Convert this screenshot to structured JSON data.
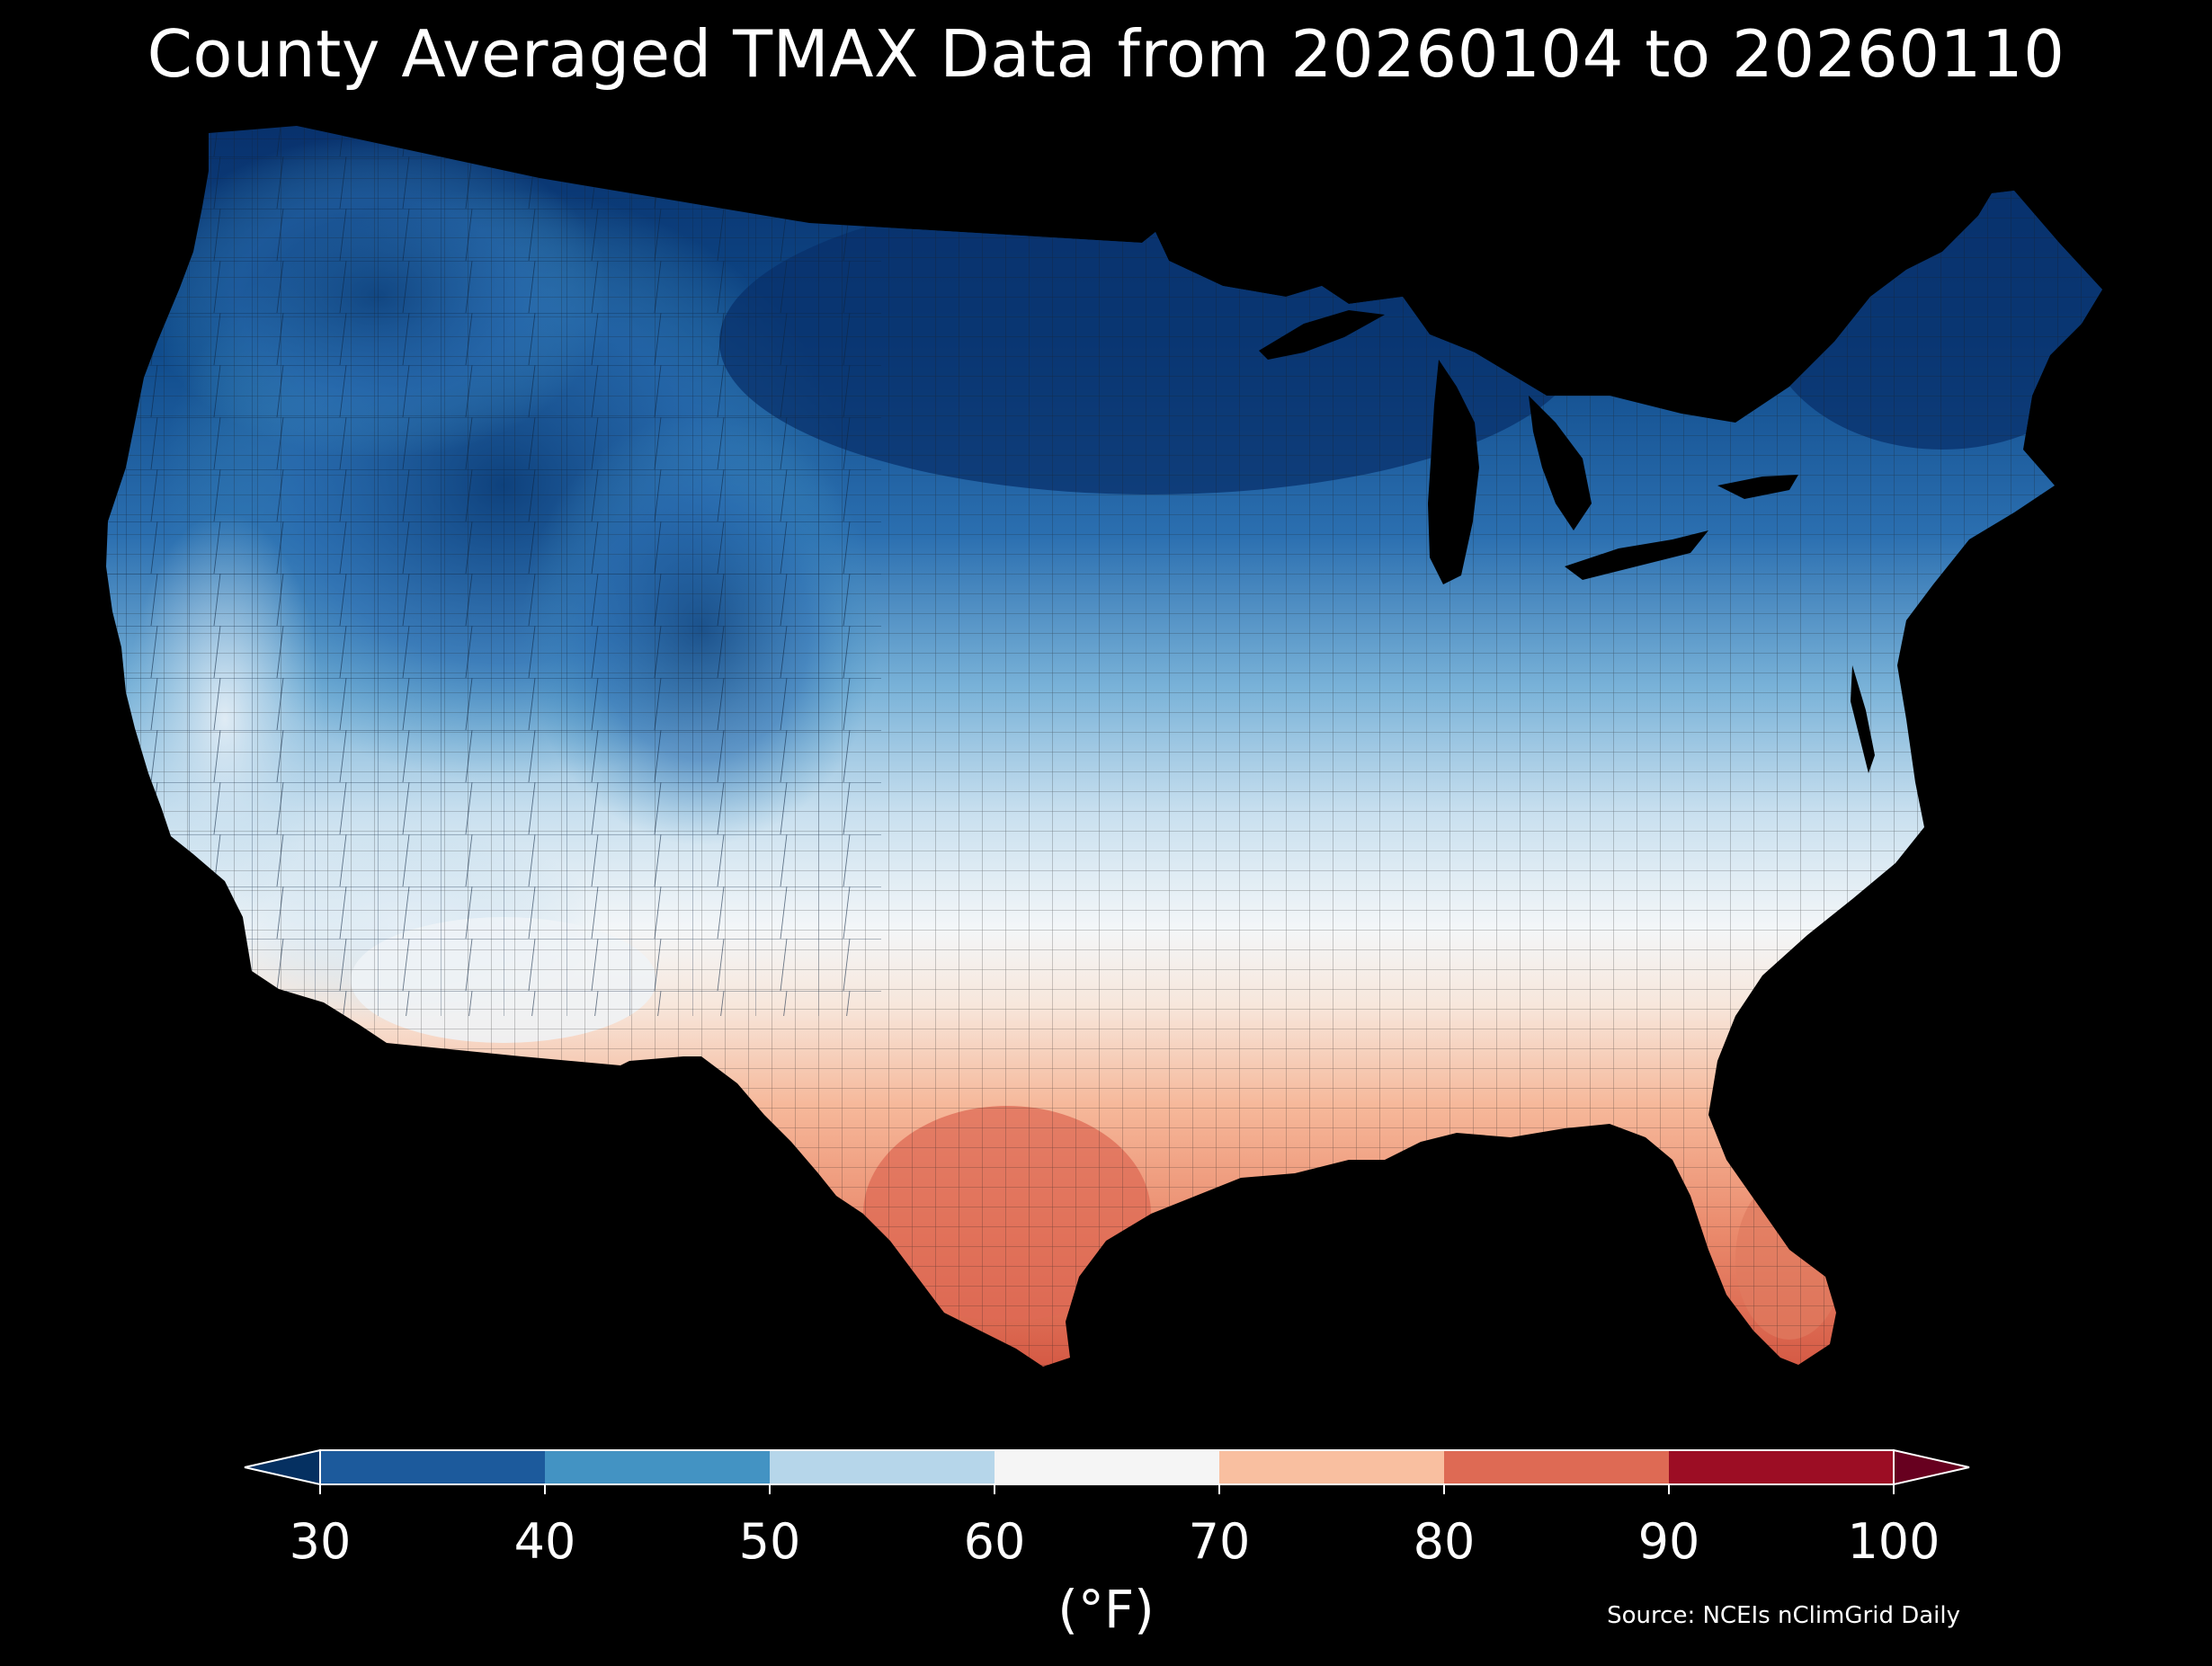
{
  "title": "County Averaged TMAX Data from 20260104 to 20260110",
  "colorbar": {
    "unit_label": "(°F)",
    "ticks": [
      "30",
      "40",
      "50",
      "60",
      "70",
      "80",
      "90",
      "100"
    ],
    "bins": [
      {
        "range": "<30",
        "color": "#053061"
      },
      {
        "range": "30-40",
        "color": "#1c5a9c"
      },
      {
        "range": "40-50",
        "color": "#4393c3"
      },
      {
        "range": "50-60",
        "color": "#b6d6ea"
      },
      {
        "range": "60-70",
        "color": "#f5f5f5"
      },
      {
        "range": "70-80",
        "color": "#f9bfa0"
      },
      {
        "range": "80-90",
        "color": "#de6a54"
      },
      {
        "range": "90-100",
        "color": "#9c0d24"
      },
      {
        "range": ">100",
        "color": "#67001f"
      }
    ]
  },
  "source": "Source: NCEIs nClimGrid Daily",
  "map": {
    "region": "Contiguous United States",
    "variable": "TMAX",
    "water_color": "#000000",
    "border_color": "#333333"
  }
}
